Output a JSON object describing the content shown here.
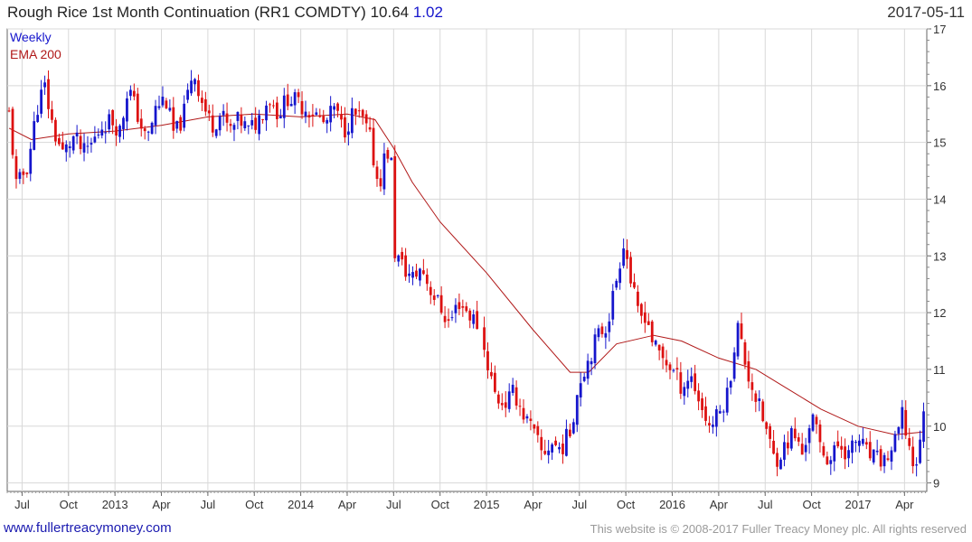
{
  "header": {
    "title": "Rough Rice 1st Month Continuation (RR1 COMDTY)",
    "last_price": "10.64",
    "change": "1.02",
    "date": "2017-05-11"
  },
  "footer": {
    "website": "www.fullertreacymoney.com",
    "copyright": "This website is © 2008-2017 Fuller Treacy Money plc. All rights reserved"
  },
  "colors": {
    "up": "#1515cc",
    "down": "#dd1111",
    "ema": "#b01818",
    "grid": "#d8d8d8"
  },
  "chart_data": {
    "type": "candlestick",
    "title": "Rough Rice 1st Month Continuation (RR1 COMDTY)",
    "frequency_label": "Weekly",
    "ema_label": "EMA 200",
    "x_start": 2012.42,
    "x_end": 2017.37,
    "ylim": [
      8.85,
      17.0
    ],
    "y_ticks": [
      9,
      10,
      11,
      12,
      13,
      14,
      15,
      16,
      17
    ],
    "x_ticks": [
      {
        "label": "Jul",
        "t": 2012.5
      },
      {
        "label": "Oct",
        "t": 2012.75
      },
      {
        "label": "2013",
        "t": 2013.0
      },
      {
        "label": "Apr",
        "t": 2013.25
      },
      {
        "label": "Jul",
        "t": 2013.5
      },
      {
        "label": "Oct",
        "t": 2013.75
      },
      {
        "label": "2014",
        "t": 2014.0
      },
      {
        "label": "Apr",
        "t": 2014.25
      },
      {
        "label": "Jul",
        "t": 2014.5
      },
      {
        "label": "Oct",
        "t": 2014.75
      },
      {
        "label": "2015",
        "t": 2015.0
      },
      {
        "label": "Apr",
        "t": 2015.25
      },
      {
        "label": "Jul",
        "t": 2015.5
      },
      {
        "label": "Oct",
        "t": 2015.75
      },
      {
        "label": "2016",
        "t": 2016.0
      },
      {
        "label": "Apr",
        "t": 2016.25
      },
      {
        "label": "Jul",
        "t": 2016.5
      },
      {
        "label": "Oct",
        "t": 2016.75
      },
      {
        "label": "2017",
        "t": 2017.0
      },
      {
        "label": "Apr",
        "t": 2017.25
      }
    ],
    "price_anchors": [
      [
        2012.43,
        15.5
      ],
      [
        2012.47,
        14.2
      ],
      [
        2012.53,
        14.6
      ],
      [
        2012.58,
        15.6
      ],
      [
        2012.62,
        16.0
      ],
      [
        2012.67,
        15.2
      ],
      [
        2012.72,
        14.8
      ],
      [
        2012.78,
        15.1
      ],
      [
        2012.83,
        14.8
      ],
      [
        2012.88,
        15.0
      ],
      [
        2012.93,
        15.3
      ],
      [
        2012.98,
        15.4
      ],
      [
        2013.03,
        15.2
      ],
      [
        2013.07,
        16.0
      ],
      [
        2013.12,
        15.5
      ],
      [
        2013.17,
        15.0
      ],
      [
        2013.22,
        15.6
      ],
      [
        2013.27,
        15.8
      ],
      [
        2013.32,
        15.1
      ],
      [
        2013.37,
        15.5
      ],
      [
        2013.42,
        16.3
      ],
      [
        2013.47,
        15.7
      ],
      [
        2013.52,
        15.3
      ],
      [
        2013.57,
        15.5
      ],
      [
        2013.62,
        15.2
      ],
      [
        2013.67,
        15.4
      ],
      [
        2013.72,
        15.2
      ],
      [
        2013.77,
        15.4
      ],
      [
        2013.83,
        15.8
      ],
      [
        2013.88,
        15.5
      ],
      [
        2013.93,
        15.8
      ],
      [
        2013.98,
        15.7
      ],
      [
        2014.03,
        15.6
      ],
      [
        2014.08,
        15.5
      ],
      [
        2014.13,
        15.3
      ],
      [
        2014.18,
        15.6
      ],
      [
        2014.23,
        15.2
      ],
      [
        2014.28,
        15.5
      ],
      [
        2014.33,
        15.4
      ],
      [
        2014.37,
        15.1
      ],
      [
        2014.42,
        14.2
      ],
      [
        2014.46,
        14.9
      ],
      [
        2014.49,
        14.6
      ],
      [
        2014.5,
        13.1
      ],
      [
        2014.55,
        12.8
      ],
      [
        2014.6,
        12.6
      ],
      [
        2014.65,
        12.8
      ],
      [
        2014.7,
        12.4
      ],
      [
        2014.75,
        12.1
      ],
      [
        2014.8,
        11.8
      ],
      [
        2014.85,
        12.2
      ],
      [
        2014.9,
        12.0
      ],
      [
        2014.95,
        11.8
      ],
      [
        2015.0,
        11.2
      ],
      [
        2015.05,
        10.5
      ],
      [
        2015.1,
        10.4
      ],
      [
        2015.15,
        10.6
      ],
      [
        2015.2,
        10.2
      ],
      [
        2015.25,
        9.9
      ],
      [
        2015.3,
        9.5
      ],
      [
        2015.35,
        9.7
      ],
      [
        2015.4,
        9.6
      ],
      [
        2015.45,
        9.9
      ],
      [
        2015.5,
        10.8
      ],
      [
        2015.55,
        11.2
      ],
      [
        2015.6,
        11.6
      ],
      [
        2015.65,
        11.8
      ],
      [
        2015.7,
        12.6
      ],
      [
        2015.74,
        13.3
      ],
      [
        2015.78,
        12.5
      ],
      [
        2015.82,
        11.9
      ],
      [
        2015.86,
        12.0
      ],
      [
        2015.9,
        11.4
      ],
      [
        2015.95,
        11.2
      ],
      [
        2016.0,
        11.0
      ],
      [
        2016.05,
        10.7
      ],
      [
        2016.1,
        10.9
      ],
      [
        2016.15,
        10.4
      ],
      [
        2016.2,
        10.0
      ],
      [
        2016.25,
        10.2
      ],
      [
        2016.3,
        10.6
      ],
      [
        2016.35,
        11.8
      ],
      [
        2016.4,
        11.0
      ],
      [
        2016.45,
        10.5
      ],
      [
        2016.5,
        10.0
      ],
      [
        2016.55,
        9.4
      ],
      [
        2016.6,
        9.6
      ],
      [
        2016.65,
        9.9
      ],
      [
        2016.7,
        9.5
      ],
      [
        2016.75,
        10.2
      ],
      [
        2016.8,
        9.6
      ],
      [
        2016.85,
        9.4
      ],
      [
        2016.9,
        9.7
      ],
      [
        2016.95,
        9.5
      ],
      [
        2017.0,
        9.8
      ],
      [
        2017.05,
        9.5
      ],
      [
        2017.1,
        9.4
      ],
      [
        2017.15,
        9.4
      ],
      [
        2017.2,
        9.7
      ],
      [
        2017.24,
        10.2
      ],
      [
        2017.27,
        9.7
      ],
      [
        2017.3,
        9.3
      ],
      [
        2017.33,
        9.5
      ],
      [
        2017.36,
        10.64
      ]
    ],
    "price_gaps": [
      [
        2014.492,
        2014.498
      ],
      [
        2014.965,
        2014.985
      ]
    ],
    "ema_points": [
      [
        2012.43,
        15.25
      ],
      [
        2012.55,
        15.05
      ],
      [
        2012.75,
        15.15
      ],
      [
        2013.0,
        15.2
      ],
      [
        2013.25,
        15.3
      ],
      [
        2013.5,
        15.45
      ],
      [
        2013.75,
        15.5
      ],
      [
        2014.0,
        15.45
      ],
      [
        2014.25,
        15.5
      ],
      [
        2014.4,
        15.4
      ],
      [
        2014.5,
        14.9
      ],
      [
        2014.6,
        14.3
      ],
      [
        2014.75,
        13.6
      ],
      [
        2015.0,
        12.7
      ],
      [
        2015.25,
        11.7
      ],
      [
        2015.45,
        10.95
      ],
      [
        2015.55,
        10.95
      ],
      [
        2015.7,
        11.45
      ],
      [
        2015.9,
        11.6
      ],
      [
        2016.05,
        11.5
      ],
      [
        2016.25,
        11.2
      ],
      [
        2016.45,
        11.0
      ],
      [
        2016.6,
        10.7
      ],
      [
        2016.8,
        10.3
      ],
      [
        2017.0,
        10.0
      ],
      [
        2017.2,
        9.85
      ],
      [
        2017.36,
        9.9
      ]
    ]
  }
}
